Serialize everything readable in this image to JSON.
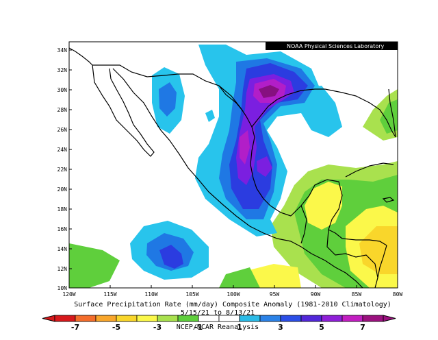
{
  "credit": "NOAA Physical Sciences Laboratory",
  "caption": {
    "title": "Surface Precipitation Rate (mm/day) Composite Anomaly (1981-2010 Climatology)",
    "dates": "5/15/21 to 8/13/21",
    "source": "NCEP/NCAR Reanalysis"
  },
  "axes": {
    "lat_ticks": [
      "34N",
      "32N",
      "30N",
      "28N",
      "26N",
      "24N",
      "22N",
      "20N",
      "18N",
      "16N",
      "14N",
      "12N",
      "10N"
    ],
    "lon_ticks": [
      "120W",
      "115W",
      "110W",
      "105W",
      "100W",
      "95W",
      "90W",
      "85W",
      "80W"
    ]
  },
  "colorbar": {
    "labels": [
      "-7",
      "-5",
      "-3",
      "-1",
      "1",
      "3",
      "5",
      "7"
    ],
    "colors": [
      "#d7191c",
      "#f46d2b",
      "#f9a62b",
      "#f9d62b",
      "#fbf84a",
      "#a9e14e",
      "#5fcf3c",
      "#ffffff",
      "#ffffff",
      "#2bbbe7",
      "#2b82e7",
      "#2b4ee7",
      "#5227d9",
      "#8f1fd8",
      "#c21ec1",
      "#9b117f"
    ]
  },
  "map": {
    "region": "Mexico and Central America",
    "lon_range": [
      -120,
      -80
    ],
    "lat_range": [
      10,
      35
    ],
    "colors": {
      "light_blue": "#28c4ec",
      "blue": "#1f78e4",
      "dark_blue": "#2b3ce0",
      "purple": "#7b1fe0",
      "violet": "#b21ec8",
      "magenta": "#861080",
      "light_green": "#a9e14e",
      "green": "#5fcf3c",
      "yellow": "#fbf84a",
      "gold": "#f9d62b"
    }
  }
}
